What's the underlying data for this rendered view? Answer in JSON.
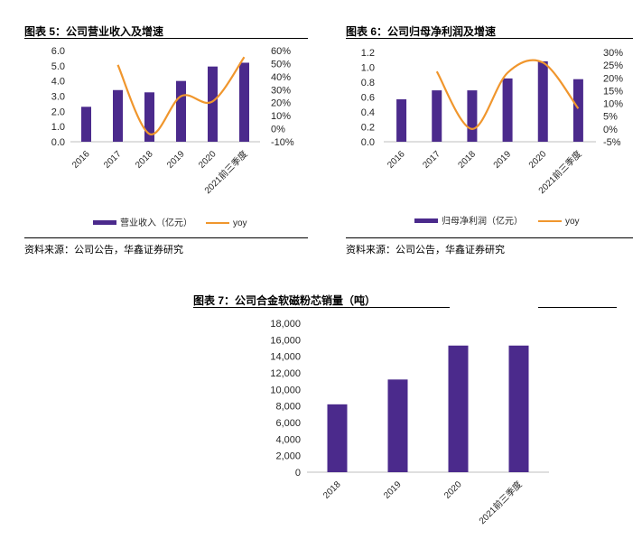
{
  "panels": {
    "fig5": {
      "title": "图表 5：公司营业收入及增速",
      "source": "资料来源：公司公告，华鑫证券研究"
    },
    "fig6": {
      "title": "图表 6：公司归母净利润及增速",
      "source": "资料来源：公司公告，华鑫证券研究"
    },
    "fig7": {
      "title": "图表 7：公司合金软磁粉芯销量（吨）"
    }
  },
  "colors": {
    "bar": "#4B2A8C",
    "line": "#F0962D",
    "axis": "#bfbfbf"
  },
  "chart_data": [
    {
      "type": "bar",
      "title": "图表 5：公司营业收入及增速",
      "categories": [
        "2016",
        "2017",
        "2018",
        "2019",
        "2020",
        "2021前三季度"
      ],
      "series": [
        {
          "name": "营业收入（亿元）",
          "type": "bar",
          "axis": "left",
          "values": [
            2.3,
            3.4,
            3.25,
            4.0,
            4.95,
            5.2
          ]
        },
        {
          "name": "yoy",
          "type": "line",
          "axis": "right",
          "values": [
            null,
            49,
            -4,
            25,
            21,
            55
          ]
        }
      ],
      "ylim": [
        0,
        6.0
      ],
      "yticks": [
        "0.0",
        "1.0",
        "2.0",
        "3.0",
        "4.0",
        "5.0",
        "6.0"
      ],
      "y2lim": [
        -10,
        60
      ],
      "y2ticks": [
        "-10%",
        "0%",
        "10%",
        "20%",
        "30%",
        "40%",
        "50%",
        "60%"
      ],
      "legend": "bottom",
      "grid": false
    },
    {
      "type": "bar",
      "title": "图表 6：公司归母净利润及增速",
      "categories": [
        "2016",
        "2017",
        "2018",
        "2019",
        "2020",
        "2021前三季度"
      ],
      "series": [
        {
          "name": "归母净利润（亿元）",
          "type": "bar",
          "axis": "left",
          "values": [
            0.57,
            0.69,
            0.69,
            0.85,
            1.08,
            0.84
          ]
        },
        {
          "name": "yoy",
          "type": "line",
          "axis": "right",
          "values": [
            null,
            22.5,
            0,
            22,
            26,
            8
          ]
        }
      ],
      "ylim": [
        0,
        1.2
      ],
      "yticks": [
        "0.0",
        "0.2",
        "0.4",
        "0.6",
        "0.8",
        "1.0",
        "1.2"
      ],
      "y2lim": [
        -5,
        30
      ],
      "y2ticks": [
        "-5%",
        "0%",
        "5%",
        "10%",
        "15%",
        "20%",
        "25%",
        "30%"
      ],
      "legend": "bottom",
      "grid": false
    },
    {
      "type": "bar",
      "title": "图表 7：公司合金软磁粉芯销量（吨）",
      "categories": [
        "2018",
        "2019",
        "2020",
        "2021前三季度"
      ],
      "series": [
        {
          "name": "",
          "values": [
            8200,
            11200,
            15300,
            15300
          ]
        }
      ],
      "ylim": [
        0,
        18000
      ],
      "yticks": [
        "0",
        "2,000",
        "4,000",
        "6,000",
        "8,000",
        "10,000",
        "12,000",
        "14,000",
        "16,000",
        "18,000"
      ],
      "legend": "none",
      "grid": false
    }
  ]
}
